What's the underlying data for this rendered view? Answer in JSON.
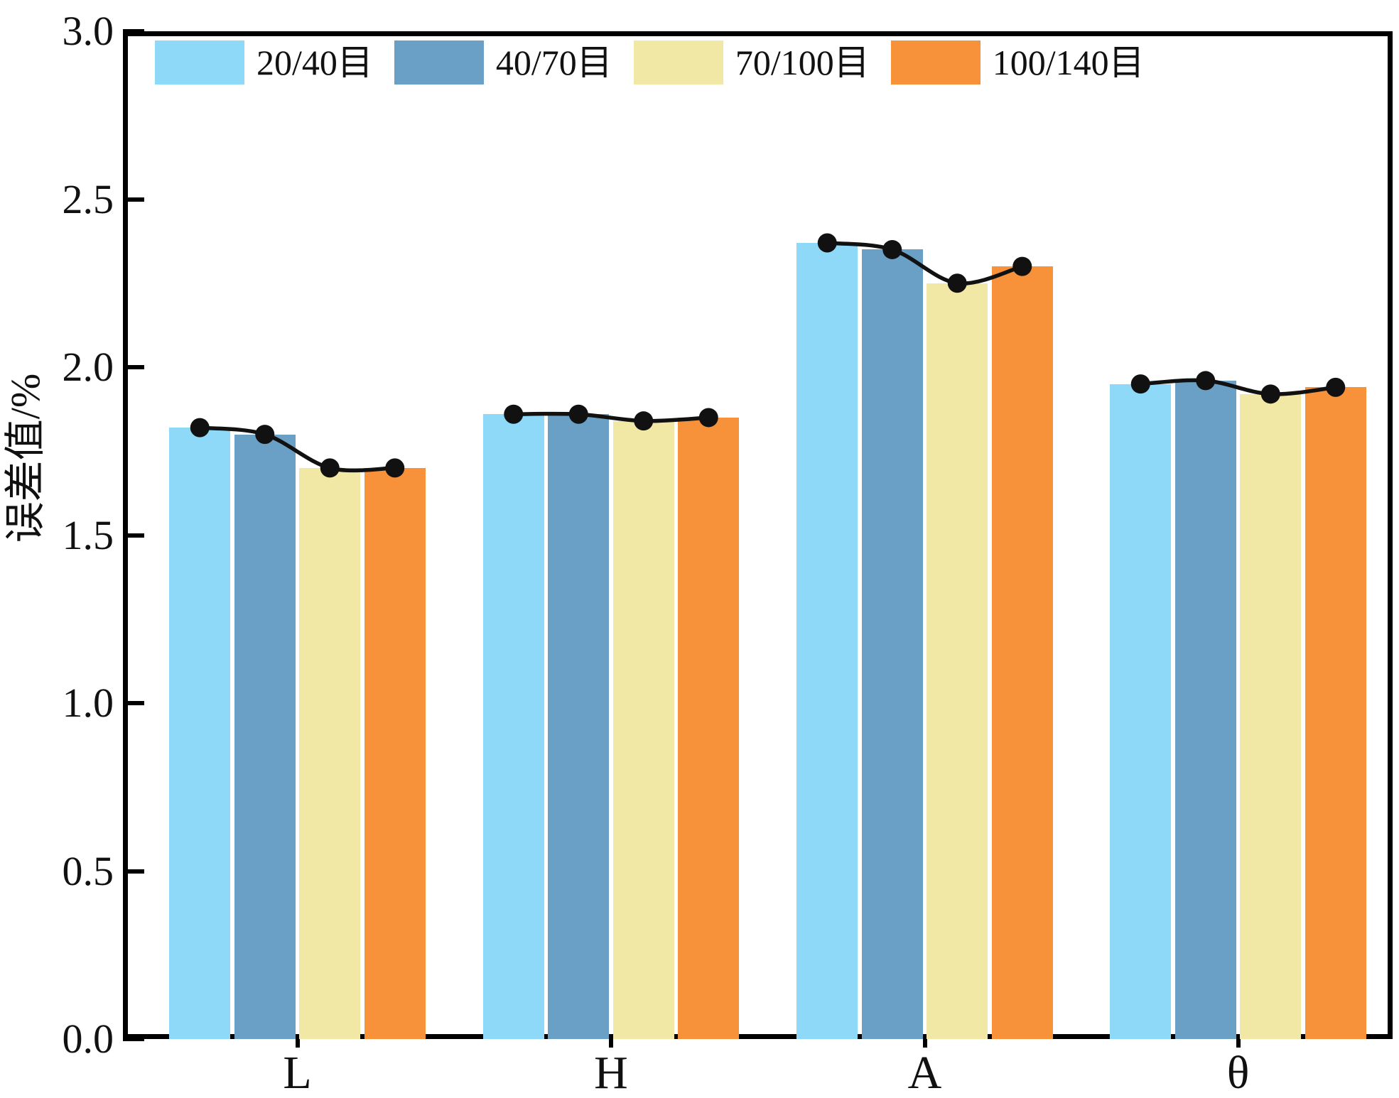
{
  "chart_data": {
    "type": "bar",
    "overlay": "line-with-dots-per-category-group",
    "categories": [
      "L",
      "H",
      "A",
      "θ"
    ],
    "series": [
      {
        "name": "20/40目",
        "color": "#8ED9F7",
        "values": [
          1.82,
          1.86,
          2.37,
          1.95
        ]
      },
      {
        "name": "40/70目",
        "color": "#6AA0C5",
        "values": [
          1.8,
          1.86,
          2.35,
          1.96
        ]
      },
      {
        "name": "70/100目",
        "color": "#F2E8A6",
        "values": [
          1.7,
          1.84,
          2.25,
          1.92
        ]
      },
      {
        "name": "100/140目",
        "color": "#F7923A",
        "values": [
          1.7,
          1.85,
          2.3,
          1.94
        ]
      }
    ],
    "title": "",
    "xlabel": "",
    "ylabel": "误差值/%",
    "ylim": [
      0.0,
      3.0
    ],
    "ytick_labels": [
      "3.0",
      "2.5",
      "2.0",
      "1.5",
      "1.0",
      "0.5",
      "0.0"
    ],
    "grid": "off",
    "legend_position": "top-inside",
    "line_color": "#111111",
    "axis_color": "#000000",
    "background_color": "#FFFFFF"
  }
}
